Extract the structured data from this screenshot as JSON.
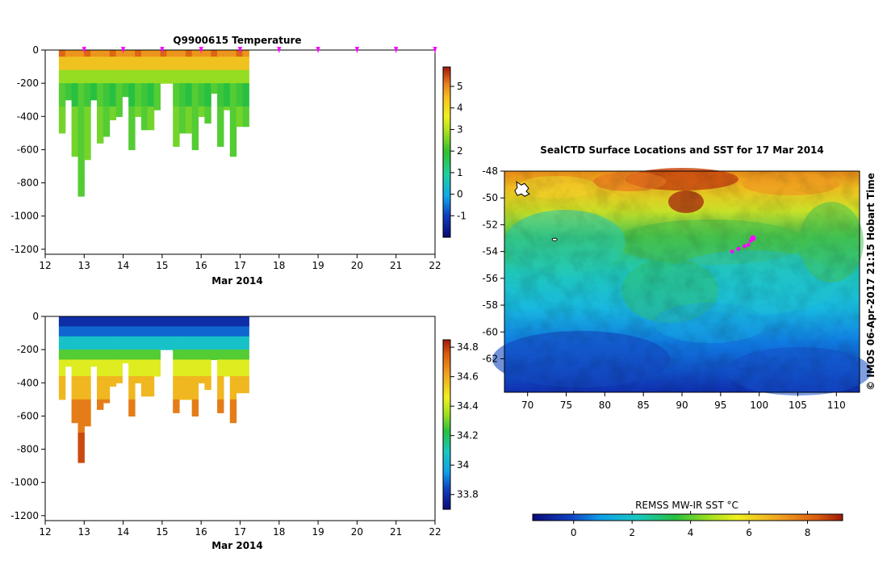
{
  "figure_title": "Q9900615  Temperature",
  "map_title": "SealCTD Surface Locations and SST for 17 Mar 2014",
  "credit": "© IMOS 06-Apr-2017 21:15 Hobart Time",
  "sst_label": "REMSS MW-IR SST °C",
  "date_axis_label": "Mar 2014",
  "colors": {
    "magenta_marker": "#ff00ff",
    "white_gap": "#ffffff"
  },
  "chart_data": [
    {
      "id": "temperature",
      "type": "heatmap",
      "title": "Q9900615  Temperature",
      "xlabel": "Mar 2014",
      "ylabel": "",
      "xlim": [
        12,
        22
      ],
      "ylim": [
        -1230,
        0
      ],
      "x_ticks": [
        12,
        13,
        14,
        15,
        16,
        17,
        18,
        19,
        20,
        21,
        22
      ],
      "y_ticks": [
        0,
        -200,
        -400,
        -600,
        -800,
        -1000,
        -1200
      ],
      "colorbar": {
        "min": -2,
        "max": 5.9,
        "ticks": [
          -1,
          0,
          1,
          2,
          3,
          4,
          5
        ]
      },
      "profile_marker_days": [
        13,
        14,
        15,
        16,
        17,
        18,
        19,
        20,
        21,
        22
      ],
      "profile_depths_m": [
        500,
        300,
        630,
        880,
        650,
        300,
        560,
        520,
        420,
        400,
        280,
        600,
        400,
        480,
        480,
        360,
        200,
        200,
        570,
        500,
        500,
        590,
        400,
        430,
        260,
        580,
        360,
        630,
        460,
        460
      ]
    },
    {
      "id": "salinity",
      "type": "heatmap",
      "title": "",
      "xlabel": "Mar 2014",
      "ylabel": "",
      "xlim": [
        12,
        22
      ],
      "ylim": [
        -1230,
        0
      ],
      "x_ticks": [
        12,
        13,
        14,
        15,
        16,
        17,
        18,
        19,
        20,
        21,
        22
      ],
      "y_ticks": [
        0,
        -200,
        -400,
        -600,
        -800,
        -1000,
        -1200
      ],
      "colorbar": {
        "min": 33.7,
        "max": 34.85,
        "ticks": [
          33.8,
          34,
          34.2,
          34.4,
          34.6,
          34.8
        ]
      }
    },
    {
      "id": "sst_map",
      "type": "heatmap",
      "title": "SealCTD Surface Locations and SST for 17 Mar 2014",
      "xlim": [
        67,
        113
      ],
      "ylim": [
        -64.5,
        -48
      ],
      "x_ticks": [
        70,
        75,
        80,
        85,
        90,
        95,
        100,
        105,
        110
      ],
      "y_ticks": [
        -48,
        -50,
        -52,
        -54,
        -56,
        -58,
        -60,
        -62
      ],
      "colorbar": {
        "label": "REMSS MW-IR SST °C",
        "min": -1.4,
        "max": 9.2,
        "ticks": [
          0,
          2,
          4,
          6,
          8
        ]
      },
      "seal_track": [
        [
          96.5,
          -54.0
        ],
        [
          97.3,
          -53.8
        ],
        [
          98.1,
          -53.6
        ],
        [
          98.6,
          -53.5
        ],
        [
          98.9,
          -53.2
        ],
        [
          99.2,
          -53.0
        ]
      ],
      "islands": [
        [
          69.4,
          -49.4
        ],
        [
          73.5,
          -53.1
        ]
      ]
    }
  ]
}
